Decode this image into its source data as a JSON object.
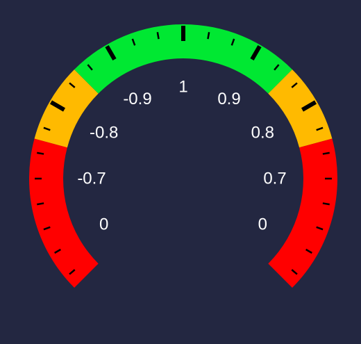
{
  "gauge": {
    "background_color": "#232741",
    "bands": [
      {
        "name": "low-left",
        "color": "#ff0000",
        "from": -135,
        "to": -75
      },
      {
        "name": "mid-left",
        "color": "#ffba00",
        "from": -75,
        "to": -45
      },
      {
        "name": "high",
        "color": "#00e832",
        "from": -45,
        "to": 45
      },
      {
        "name": "mid-right",
        "color": "#ffba00",
        "from": 45,
        "to": 75
      },
      {
        "name": "low-right",
        "color": "#ff0000",
        "from": 75,
        "to": 135
      }
    ],
    "major_ticks": [
      -60,
      -30,
      0,
      30,
      60
    ],
    "labels": [
      {
        "text": "0",
        "angle": -120
      },
      {
        "text": "-0.7",
        "angle": -90
      },
      {
        "text": "-0.8",
        "angle": -60
      },
      {
        "text": "-0.9",
        "angle": -30
      },
      {
        "text": "1",
        "angle": 0
      },
      {
        "text": "0.9",
        "angle": 30
      },
      {
        "text": "0.8",
        "angle": 60
      },
      {
        "text": "0.7",
        "angle": 90
      },
      {
        "text": "0",
        "angle": 120
      }
    ]
  }
}
